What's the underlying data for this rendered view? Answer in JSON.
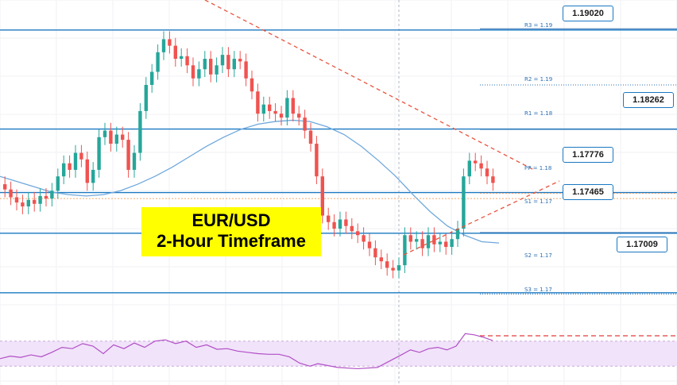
{
  "title": {
    "line1": "EUR/USD",
    "line2": "2-Hour Timeframe",
    "background": "#ffff00"
  },
  "colors": {
    "bull": "#26a69a",
    "bear": "#ef5350",
    "horizontal_line": "#1a78c2",
    "moving_average": "#6fa8dc",
    "trend_line": "#e8553f",
    "rsi_line": "#b14fc6",
    "rsi_band": "#f1e3fa",
    "pivot": "#2b6fb3"
  },
  "levels": {
    "tags": [
      {
        "label": "1.19020",
        "price": 1.1902
      },
      {
        "label": "1.18262",
        "price": 1.18262
      },
      {
        "label": "1.17776",
        "price": 1.17776
      },
      {
        "label": "1.17465",
        "price": 1.17465
      },
      {
        "label": "1.17009",
        "price": 1.17009
      }
    ],
    "pivots": [
      {
        "label": "R3 = 1.19",
        "style": "solid"
      },
      {
        "label": "R2 = 1.19",
        "style": "dotted"
      },
      {
        "label": "R1 = 1.18",
        "style": "solid"
      },
      {
        "label": "PP = 1.18",
        "style": "dotted-orange"
      },
      {
        "label": "S1 = 1.17",
        "style": "solid"
      },
      {
        "label": "S2 = 1.17",
        "style": "dotted"
      },
      {
        "label": "S3 = 1.17",
        "style": "dashed-red"
      }
    ]
  },
  "chart_data": {
    "type": "line",
    "title": "EUR/USD 2-Hour Timeframe",
    "candles_close": [
      1.178,
      1.1774,
      1.177,
      1.1767,
      1.1772,
      1.1769,
      1.1775,
      1.1773,
      1.1779,
      1.179,
      1.18,
      1.1795,
      1.1808,
      1.1803,
      1.1785,
      1.1795,
      1.182,
      1.1825,
      1.1815,
      1.1822,
      1.1818,
      1.1795,
      1.1808,
      1.184,
      1.186,
      1.187,
      1.1885,
      1.1895,
      1.189,
      1.188,
      1.1882,
      1.1875,
      1.1865,
      1.1872,
      1.188,
      1.1868,
      1.1875,
      1.1883,
      1.1872,
      1.188,
      1.1878,
      1.1865,
      1.1855,
      1.1838,
      1.1845,
      1.184,
      1.1838,
      1.1835,
      1.185,
      1.1838,
      1.1835,
      1.1825,
      1.1815,
      1.179,
      1.176,
      1.1755,
      1.175,
      1.1757,
      1.1752,
      1.1748,
      1.1745,
      1.174,
      1.1735,
      1.1728,
      1.1725,
      1.172,
      1.1718,
      1.1722,
      1.1745,
      1.174,
      1.1742,
      1.1735,
      1.1745,
      1.1738,
      1.174,
      1.1736,
      1.1742,
      1.175,
      1.179,
      1.1802,
      1.18,
      1.1796,
      1.179,
      1.1785
    ],
    "moving_average": [
      1.179,
      1.1786,
      1.1782,
      1.1778,
      1.1776,
      1.1775,
      1.1776,
      1.1779,
      1.1784,
      1.179,
      1.1797,
      1.1805,
      1.1813,
      1.182,
      1.1826,
      1.183,
      1.1832,
      1.1833,
      1.1832,
      1.1828,
      1.1822,
      1.1813,
      1.1802,
      1.179,
      1.1776,
      1.1763,
      1.1752,
      1.1745,
      1.174,
      1.1739
    ],
    "rsi": [
      42,
      46,
      44,
      48,
      45,
      52,
      60,
      58,
      66,
      62,
      50,
      64,
      58,
      67,
      60,
      70,
      72,
      66,
      70,
      60,
      64,
      57,
      58,
      54,
      52,
      50,
      49,
      49,
      45,
      35,
      30,
      34,
      28,
      26,
      28,
      48,
      56,
      52,
      58,
      60,
      56,
      62,
      82,
      80,
      76,
      71
    ],
    "ylim": [
      1.1685,
      1.1925
    ],
    "rsi_range": [
      0,
      100
    ],
    "grid": true
  }
}
